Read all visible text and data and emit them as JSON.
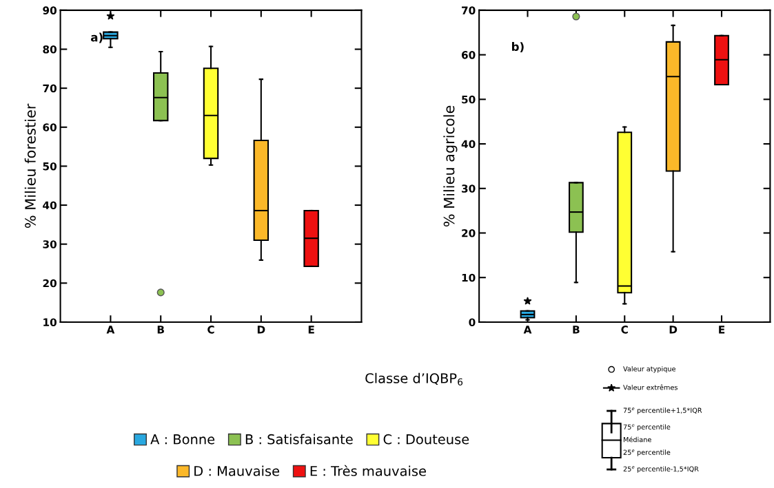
{
  "chart_data": [
    {
      "type": "box",
      "ylabel": "% Milieu forestier",
      "xlabel": "Classe d’IQBP$_{6}$",
      "categories": [
        "A",
        "B",
        "C",
        "D",
        "E"
      ],
      "ylim": [
        10,
        90
      ],
      "yticks": [
        10,
        20,
        30,
        40,
        50,
        60,
        70,
        80,
        90
      ],
      "grid": false,
      "legend": "bottom",
      "annotations": [
        "a)"
      ],
      "series": [
        {
          "name": "A : Bonne",
          "color": "#29a8e0",
          "boxes": [
            {
              "low": 80.5,
              "q1": 82.7,
              "median": 83.5,
              "q3": 84.4,
              "high": 84.4
            },
            null,
            null,
            null,
            null
          ]
        },
        {
          "name": "B : Satisfaisante",
          "color": "#8cc152",
          "boxes": [
            null,
            {
              "low": 61.7,
              "q1": 61.7,
              "median": 67.6,
              "q3": 73.9,
              "high": 79.4,
              "outliers": [
                17.6
              ]
            },
            null,
            null,
            null
          ]
        },
        {
          "name": "C : Douteuse",
          "color": "#ffff33",
          "boxes": [
            null,
            null,
            {
              "low": 50.3,
              "q1": 52,
              "median": 63,
              "q3": 75.1,
              "high": 80.7
            },
            null,
            null
          ]
        },
        {
          "name": "D : Mauvaise",
          "color": "#fbb829",
          "boxes": [
            null,
            null,
            null,
            {
              "low": 25.9,
              "q1": 31,
              "median": 38.6,
              "q3": 56.6,
              "high": 72.3
            },
            null
          ]
        },
        {
          "name": "E : Très mauvaise",
          "color": "#ee1111",
          "boxes": [
            null,
            null,
            null,
            null,
            {
              "low": 24.3,
              "q1": 24.3,
              "median": 31.5,
              "q3": 38.6,
              "high": 38.6
            }
          ]
        },
        {
          "type": "scatter",
          "color": "#000000",
          "marker": "star",
          "x": [
            "A"
          ],
          "values": [
            88.5
          ]
        }
      ]
    },
    {
      "type": "box",
      "ylabel": "% Milieu agricole",
      "categories": [
        "A",
        "B",
        "C",
        "D",
        "E"
      ],
      "ylim": [
        0,
        70
      ],
      "yticks": [
        0,
        10,
        20,
        30,
        40,
        50,
        60,
        70
      ],
      "grid": false,
      "annotations": [
        "b)",
        "Valeur atypique",
        "Valeur extrêmes",
        "75$^{e}$ percentile+1,5*IQR",
        "75$^{e}$ percentile",
        "Médiane",
        "25$^{e}$ percentile",
        "25$^{e}$ percentile-1,5*IQR"
      ],
      "series": [
        {
          "color": "#29a8e0",
          "boxes": [
            {
              "low": 0.5,
              "q1": 1.0,
              "median": 1.7,
              "q3": 2.5,
              "high": 2.5
            },
            null,
            null,
            null,
            null
          ]
        },
        {
          "color": "#8cc152",
          "boxes": [
            null,
            {
              "low": 8.9,
              "q1": 20.2,
              "median": 24.7,
              "q3": 31.3,
              "high": 31.3,
              "outliers": [
                68.6
              ]
            },
            null,
            null,
            null
          ]
        },
        {
          "color": "#ffff33",
          "boxes": [
            null,
            null,
            {
              "low": 4.1,
              "q1": 6.6,
              "median": 8.1,
              "q3": 42.6,
              "high": 43.8
            },
            null,
            null
          ]
        },
        {
          "color": "#fbb829",
          "boxes": [
            null,
            null,
            null,
            {
              "low": 15.8,
              "q1": 33.9,
              "median": 55.1,
              "q3": 62.9,
              "high": 66.6
            },
            null
          ]
        },
        {
          "color": "#ee1111",
          "boxes": [
            null,
            null,
            null,
            null,
            {
              "low": 53.3,
              "q1": 53.3,
              "median": 58.9,
              "q3": 64.3,
              "high": 64.3
            }
          ]
        },
        {
          "type": "scatter",
          "color": "#000000",
          "marker": "star",
          "x": [
            "A"
          ],
          "values": [
            4.7
          ]
        }
      ]
    }
  ]
}
